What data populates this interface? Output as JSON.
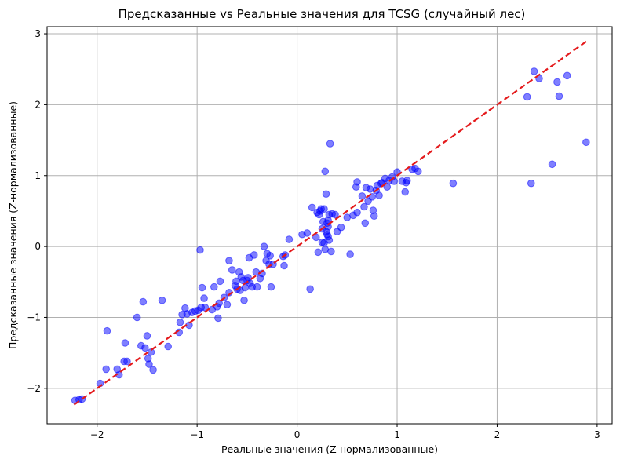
{
  "chart_data": {
    "type": "scatter",
    "title": "Предсказанные vs Реальные значения для TCSG (случайный лес)",
    "xlabel": "Реальные значения (Z-нормализованные)",
    "ylabel": "Предсказанные значения (Z-нормализованные)",
    "xlim": [
      -2.5,
      3.15
    ],
    "ylim": [
      -2.5,
      3.1
    ],
    "xticks": [
      -2,
      -1,
      0,
      1,
      2,
      3
    ],
    "yticks": [
      -2,
      -1,
      0,
      1,
      2,
      3
    ],
    "xtick_labels": [
      "−2",
      "−1",
      "0",
      "1",
      "2",
      "3"
    ],
    "ytick_labels": [
      "−2",
      "−1",
      "0",
      "1",
      "2",
      "3"
    ],
    "grid": true,
    "colors": {
      "points": "#0000ff",
      "reference_line": "#e41a1c",
      "grid": "#b0b0b0"
    },
    "reference_line": {
      "style": "dashed",
      "x": [
        -2.23,
        2.9
      ],
      "y": [
        -2.23,
        2.9
      ]
    },
    "points": [
      [
        -2.22,
        -2.17
      ],
      [
        -2.18,
        -2.16
      ],
      [
        -2.15,
        -2.15
      ],
      [
        -1.97,
        -1.93
      ],
      [
        -1.91,
        -1.73
      ],
      [
        -1.9,
        -1.19
      ],
      [
        -1.8,
        -1.73
      ],
      [
        -1.78,
        -1.81
      ],
      [
        -1.73,
        -1.62
      ],
      [
        -1.72,
        -1.36
      ],
      [
        -1.7,
        -1.62
      ],
      [
        -1.6,
        -1.0
      ],
      [
        -1.56,
        -1.4
      ],
      [
        -1.54,
        -0.78
      ],
      [
        -1.52,
        -1.43
      ],
      [
        -1.5,
        -1.26
      ],
      [
        -1.49,
        -1.58
      ],
      [
        -1.48,
        -1.66
      ],
      [
        -1.46,
        -1.49
      ],
      [
        -1.44,
        -1.74
      ],
      [
        -1.35,
        -0.76
      ],
      [
        -1.29,
        -1.41
      ],
      [
        -1.18,
        -1.21
      ],
      [
        -1.17,
        -1.07
      ],
      [
        -1.15,
        -0.96
      ],
      [
        -1.12,
        -0.87
      ],
      [
        -1.1,
        -0.95
      ],
      [
        -1.08,
        -1.11
      ],
      [
        -1.05,
        -0.93
      ],
      [
        -1.02,
        -0.91
      ],
      [
        -0.99,
        -0.9
      ],
      [
        -0.97,
        -0.05
      ],
      [
        -0.96,
        -0.86
      ],
      [
        -0.95,
        -0.58
      ],
      [
        -0.93,
        -0.73
      ],
      [
        -0.92,
        -0.86
      ],
      [
        -0.85,
        -0.89
      ],
      [
        -0.83,
        -0.57
      ],
      [
        -0.8,
        -0.85
      ],
      [
        -0.79,
        -1.01
      ],
      [
        -0.78,
        -0.8
      ],
      [
        -0.77,
        -0.49
      ],
      [
        -0.73,
        -0.72
      ],
      [
        -0.7,
        -0.82
      ],
      [
        -0.68,
        -0.65
      ],
      [
        -0.68,
        -0.2
      ],
      [
        -0.65,
        -0.33
      ],
      [
        -0.62,
        -0.55
      ],
      [
        -0.61,
        -0.49
      ],
      [
        -0.6,
        -0.6
      ],
      [
        -0.58,
        -0.36
      ],
      [
        -0.57,
        -0.62
      ],
      [
        -0.56,
        -0.43
      ],
      [
        -0.54,
        -0.48
      ],
      [
        -0.53,
        -0.76
      ],
      [
        -0.52,
        -0.58
      ],
      [
        -0.5,
        -0.48
      ],
      [
        -0.49,
        -0.44
      ],
      [
        -0.48,
        -0.16
      ],
      [
        -0.47,
        -0.52
      ],
      [
        -0.45,
        -0.57
      ],
      [
        -0.43,
        -0.12
      ],
      [
        -0.41,
        -0.36
      ],
      [
        -0.4,
        -0.57
      ],
      [
        -0.37,
        -0.45
      ],
      [
        -0.35,
        -0.38
      ],
      [
        -0.33,
        0.0
      ],
      [
        -0.31,
        -0.2
      ],
      [
        -0.3,
        -0.1
      ],
      [
        -0.28,
        -0.25
      ],
      [
        -0.27,
        -0.13
      ],
      [
        -0.26,
        -0.57
      ],
      [
        -0.24,
        -0.25
      ],
      [
        -0.14,
        -0.14
      ],
      [
        -0.13,
        -0.27
      ],
      [
        -0.12,
        -0.12
      ],
      [
        -0.08,
        0.1
      ],
      [
        0.05,
        0.17
      ],
      [
        0.1,
        0.19
      ],
      [
        0.13,
        -0.6
      ],
      [
        0.15,
        0.55
      ],
      [
        0.19,
        0.13
      ],
      [
        0.2,
        0.48
      ],
      [
        0.21,
        -0.08
      ],
      [
        0.22,
        0.45
      ],
      [
        0.23,
        0.5
      ],
      [
        0.24,
        0.53
      ],
      [
        0.25,
        0.06
      ],
      [
        0.25,
        0.25
      ],
      [
        0.26,
        0.35
      ],
      [
        0.27,
        0.53
      ],
      [
        0.27,
        0.05
      ],
      [
        0.28,
        1.06
      ],
      [
        0.28,
        -0.04
      ],
      [
        0.29,
        0.74
      ],
      [
        0.29,
        0.21
      ],
      [
        0.3,
        0.33
      ],
      [
        0.3,
        0.17
      ],
      [
        0.31,
        0.14
      ],
      [
        0.31,
        0.28
      ],
      [
        0.31,
        0.37
      ],
      [
        0.32,
        0.09
      ],
      [
        0.32,
        0.45
      ],
      [
        0.33,
        1.45
      ],
      [
        0.34,
        -0.07
      ],
      [
        0.35,
        0.46
      ],
      [
        0.38,
        0.45
      ],
      [
        0.4,
        0.21
      ],
      [
        0.44,
        0.27
      ],
      [
        0.5,
        0.41
      ],
      [
        0.53,
        -0.11
      ],
      [
        0.56,
        0.44
      ],
      [
        0.59,
        0.84
      ],
      [
        0.6,
        0.48
      ],
      [
        0.6,
        0.91
      ],
      [
        0.65,
        0.71
      ],
      [
        0.67,
        0.56
      ],
      [
        0.68,
        0.33
      ],
      [
        0.69,
        0.83
      ],
      [
        0.71,
        0.64
      ],
      [
        0.73,
        0.81
      ],
      [
        0.75,
        0.7
      ],
      [
        0.76,
        0.51
      ],
      [
        0.77,
        0.43
      ],
      [
        0.79,
        0.79
      ],
      [
        0.8,
        0.86
      ],
      [
        0.82,
        0.72
      ],
      [
        0.84,
        0.89
      ],
      [
        0.85,
        0.9
      ],
      [
        0.88,
        0.96
      ],
      [
        0.9,
        0.84
      ],
      [
        0.92,
        0.93
      ],
      [
        0.95,
        0.98
      ],
      [
        0.97,
        0.92
      ],
      [
        1.0,
        1.05
      ],
      [
        1.05,
        0.92
      ],
      [
        1.08,
        0.77
      ],
      [
        1.09,
        0.9
      ],
      [
        1.1,
        0.93
      ],
      [
        1.15,
        1.09
      ],
      [
        1.18,
        1.1
      ],
      [
        1.21,
        1.06
      ],
      [
        1.56,
        0.89
      ],
      [
        2.3,
        2.11
      ],
      [
        2.34,
        0.89
      ],
      [
        2.37,
        2.47
      ],
      [
        2.42,
        2.37
      ],
      [
        2.55,
        1.16
      ],
      [
        2.6,
        2.32
      ],
      [
        2.62,
        2.12
      ],
      [
        2.7,
        2.41
      ],
      [
        2.89,
        1.47
      ]
    ]
  }
}
